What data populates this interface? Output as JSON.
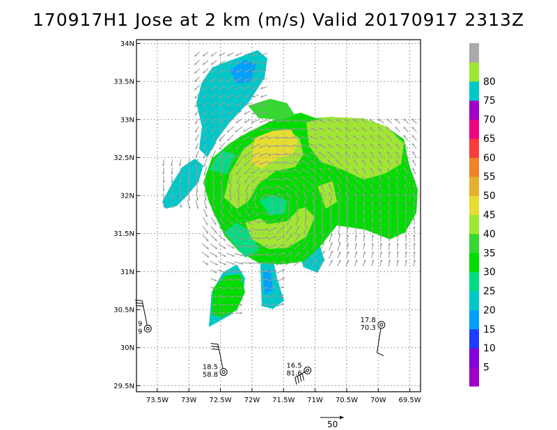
{
  "title": "170917H1 Jose at 2 km (m/s) Valid 20170917 2313Z",
  "map": {
    "lon_range": [
      -73.83,
      -69.33
    ],
    "lat_range": [
      29.42,
      34.05
    ],
    "lon_ticks": [
      {
        "lon": -73.5,
        "label": "73.5W"
      },
      {
        "lon": -73,
        "label": "73W"
      },
      {
        "lon": -72.5,
        "label": "72.5W"
      },
      {
        "lon": -72,
        "label": "72W"
      },
      {
        "lon": -71.5,
        "label": "71.5W"
      },
      {
        "lon": -71,
        "label": "71W"
      },
      {
        "lon": -70.5,
        "label": "70.5W"
      },
      {
        "lon": -70,
        "label": "70W"
      },
      {
        "lon": -69.5,
        "label": "69.5W"
      }
    ],
    "lat_ticks": [
      {
        "lat": 34,
        "label": "34N"
      },
      {
        "lat": 33.5,
        "label": "33.5N"
      },
      {
        "lat": 33,
        "label": "33N"
      },
      {
        "lat": 32.5,
        "label": "32.5N"
      },
      {
        "lat": 32,
        "label": "32N"
      },
      {
        "lat": 31.5,
        "label": "31.5N"
      },
      {
        "lat": 31,
        "label": "31N"
      },
      {
        "lat": 30.5,
        "label": "30.5N"
      },
      {
        "lat": 30,
        "label": "30N"
      },
      {
        "lat": 29.5,
        "label": "29.5N"
      }
    ],
    "grid": true,
    "storm_center": {
      "lon": -71.75,
      "lat": 31.9
    }
  },
  "colorbar": {
    "levels": [
      {
        "label": "",
        "color": "#a000c8"
      },
      {
        "label": "5",
        "color": "#8200dc"
      },
      {
        "label": "10",
        "color": "#1e3cff"
      },
      {
        "label": "15",
        "color": "#00a0ff"
      },
      {
        "label": "20",
        "color": "#00c8c8"
      },
      {
        "label": "25",
        "color": "#00dc82"
      },
      {
        "label": "30",
        "color": "#00dc00"
      },
      {
        "label": "35",
        "color": "#36d732"
      },
      {
        "label": "40",
        "color": "#a0e632"
      },
      {
        "label": "45",
        "color": "#e6dc32"
      },
      {
        "label": "50",
        "color": "#e6af2d"
      },
      {
        "label": "55",
        "color": "#f08228"
      },
      {
        "label": "60",
        "color": "#fa3c3c"
      },
      {
        "label": "65",
        "color": "#f00082"
      },
      {
        "label": "70",
        "color": "#a000c8"
      },
      {
        "label": "75",
        "color": "#00c8c8"
      },
      {
        "label": "80",
        "color": "#a0e632"
      },
      {
        "label": "",
        "color": "#aaaaaa"
      }
    ]
  },
  "stations": [
    {
      "lon": -73.65,
      "lat": 30.25,
      "top": "9",
      "bottom": "9"
    },
    {
      "lon": -72.45,
      "lat": 29.68,
      "top": "18.5",
      "bottom": "58.8"
    },
    {
      "lon": -71.12,
      "lat": 29.7,
      "top": "16.5",
      "bottom": "81.6"
    },
    {
      "lon": -69.95,
      "lat": 30.3,
      "top": "17.8",
      "bottom": "70.3"
    }
  ],
  "reference_vector": {
    "label": "50"
  }
}
